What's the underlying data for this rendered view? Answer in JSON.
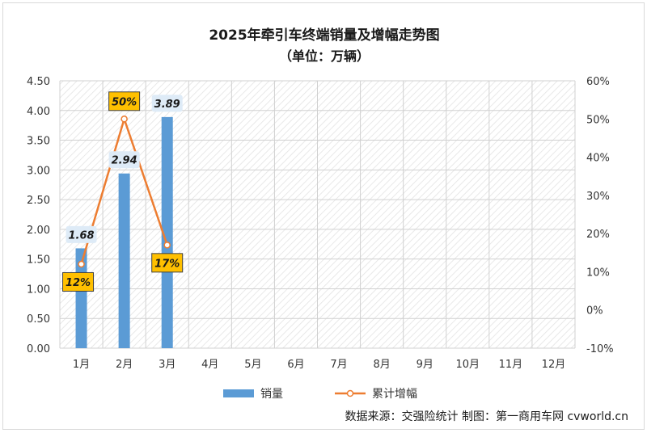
{
  "chart_data": {
    "type": "bar",
    "title": "2025年牵引车终端销量及增幅走势图",
    "subtitle": "（单位：万辆）",
    "categories": [
      "1月",
      "2月",
      "3月",
      "4月",
      "5月",
      "6月",
      "7月",
      "8月",
      "9月",
      "10月",
      "11月",
      "12月"
    ],
    "y_left": {
      "min": 0,
      "max": 4.5,
      "step": 0.5,
      "tick_labels": [
        "0.00",
        "0.50",
        "1.00",
        "1.50",
        "2.00",
        "2.50",
        "3.00",
        "3.50",
        "4.00",
        "4.50"
      ]
    },
    "y_right": {
      "min": -10,
      "max": 60,
      "step": 10,
      "tick_labels": [
        "-10%",
        "0%",
        "10%",
        "20%",
        "30%",
        "40%",
        "50%",
        "60%"
      ]
    },
    "series": [
      {
        "name": "销量",
        "type": "bar",
        "axis": "left",
        "color": "#5b9bd5",
        "values": [
          1.68,
          2.94,
          3.89,
          null,
          null,
          null,
          null,
          null,
          null,
          null,
          null,
          null
        ],
        "labels": [
          "1.68",
          "2.94",
          "3.89"
        ]
      },
      {
        "name": "累计增幅",
        "type": "line",
        "axis": "right",
        "color": "#ed7d31",
        "values": [
          12,
          50,
          17,
          null,
          null,
          null,
          null,
          null,
          null,
          null,
          null,
          null
        ],
        "labels": [
          "12%",
          "50%",
          "17%"
        ]
      }
    ],
    "legend_position": "bottom",
    "grid": true,
    "source_note": "数据来源：交强险统计   制图：第一商用车网 cvworld.cn"
  }
}
